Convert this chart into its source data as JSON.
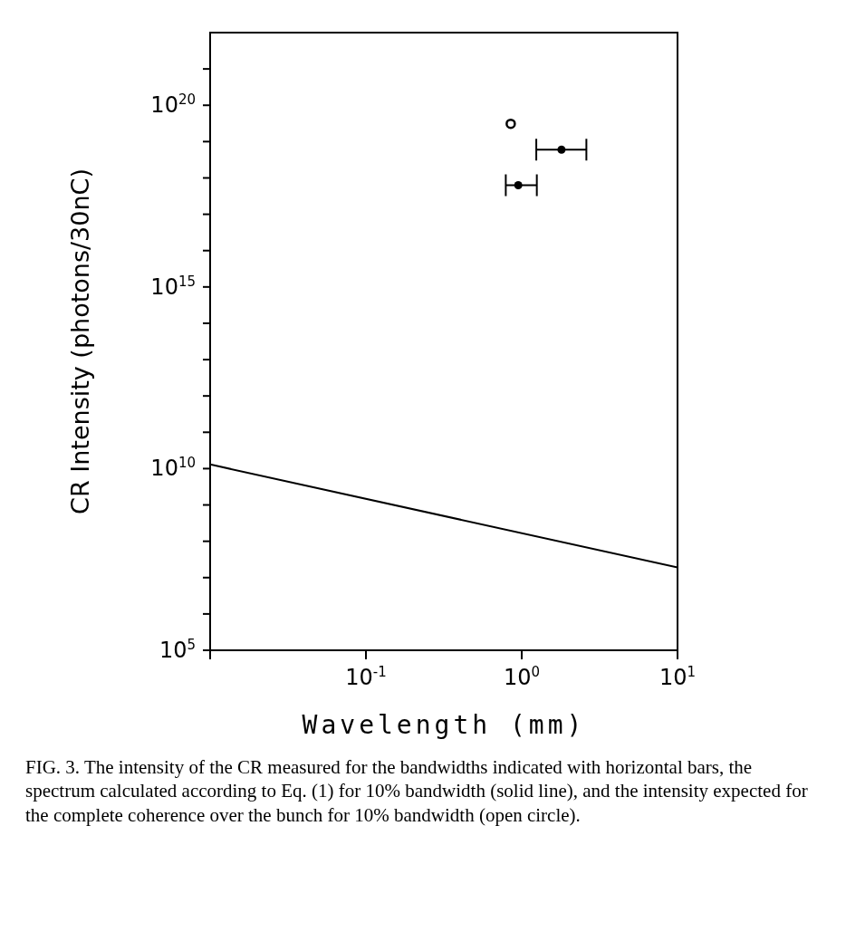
{
  "chart_data": {
    "type": "scatter",
    "xlabel": "Wavelength (mm)",
    "ylabel": "CR Intensity (photons/30nC)",
    "log": "xy",
    "xlim": [
      0.01,
      10
    ],
    "xticks": [
      {
        "value": 0.01,
        "label": null
      },
      {
        "value": 0.1,
        "label": "10$^{-1}$"
      },
      {
        "value": 1,
        "label": "10$^{0}$"
      },
      {
        "value": 10,
        "label": "10$^{1}$"
      }
    ],
    "ylim": [
      100000.0,
      1e+22
    ],
    "yticks": [
      {
        "value": 100000.0,
        "label": "10$^{5}$"
      },
      {
        "value": 1000000.0,
        "label": null
      },
      {
        "value": 10000000.0,
        "label": null
      },
      {
        "value": 100000000.0,
        "label": null
      },
      {
        "value": 1000000000.0,
        "label": null
      },
      {
        "value": 10000000000.0,
        "label": "10$^{10}$"
      },
      {
        "value": 100000000000.0,
        "label": null
      },
      {
        "value": 1000000000000.0,
        "label": null
      },
      {
        "value": 10000000000000.0,
        "label": null
      },
      {
        "value": 100000000000000.0,
        "label": null
      },
      {
        "value": 1000000000000000.0,
        "label": "10$^{15}$"
      },
      {
        "value": 1e+16,
        "label": null
      },
      {
        "value": 1e+17,
        "label": null
      },
      {
        "value": 1e+18,
        "label": null
      },
      {
        "value": 1e+19,
        "label": null
      },
      {
        "value": 1e+20,
        "label": "10$^{20}$"
      },
      {
        "value": 1e+21,
        "label": null
      }
    ],
    "series": [
      {
        "type": "line",
        "color": "#000000",
        "marker": "none",
        "line_style": "solid",
        "x": [
          0.01,
          10
        ],
        "values": [
          13000000000.0,
          19000000.0
        ]
      },
      {
        "color": "#000000",
        "marker": "circle",
        "x": [
          1.8,
          0.95
        ],
        "values": [
          6e+18,
          6.3e+17
        ],
        "xerrors": [
          [
            1.24,
            2.6
          ],
          [
            0.79,
            1.25
          ]
        ]
      },
      {
        "color": "#000000",
        "marker": "circle",
        "x": [
          0.85
        ],
        "values": [
          3.1e+19
        ]
      }
    ],
    "annotations": [
      "FIG. 3.  The intensity of the CR measured for the bandwidths indicated with horizontal bars, the spectrum calculated according to Eq. (1) for 10% bandwidth (solid line), and the intensity expected for the complete coherence over the bunch for 10% bandwidth (open circle)."
    ]
  }
}
